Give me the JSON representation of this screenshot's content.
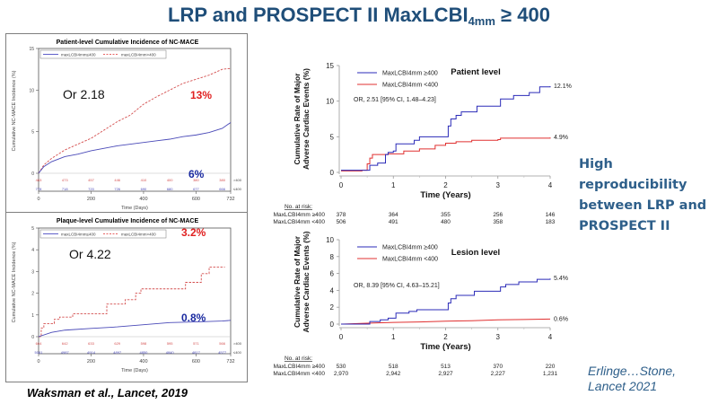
{
  "slide": {
    "title_main": "LRP and PROSPECT II MaxLCBI",
    "title_sub": "4mm",
    "title_tail": " ≥ 400",
    "reproducibility_text": "High reproducibility between LRP and PROSPECT II",
    "lrp_citation": "Waksman et al., Lancet, 2019",
    "prospect_citation_line1": "Erlinge…Stone,",
    "prospect_citation_line2": "Lancet 2021"
  },
  "colors": {
    "title": "#1f4e79",
    "high_group": "#2b2bb8",
    "low_group": "#e03030",
    "annotation_red": "#e02020",
    "annotation_blue": "#1a2aa0"
  },
  "chart_data": [
    {
      "id": "lrp-patient",
      "type": "line",
      "title": "Patient-level Cumulative Incidence of NC-MACE",
      "xlabel": "Time (Days)",
      "ylabel": "Cumulative NC-MACE Incidence (%)",
      "xlim": [
        0,
        732
      ],
      "ylim": [
        0,
        15
      ],
      "xticks": [
        0,
        200,
        400,
        600,
        732
      ],
      "yticks": [
        0,
        5,
        10,
        15
      ],
      "legend": [
        "maxLCBI4mm≤400",
        "maxLCBI4mm>400"
      ],
      "legend_position": "top-left",
      "annotations": {
        "or": "Or 2.18",
        "high_pct": "13%",
        "low_pct": "6%"
      },
      "series": [
        {
          "name": "maxLCBI4mm>400",
          "style": "dashed",
          "x": [
            0,
            20,
            50,
            100,
            150,
            200,
            250,
            300,
            350,
            400,
            450,
            500,
            550,
            600,
            650,
            700,
            732
          ],
          "y": [
            0,
            1.0,
            1.8,
            2.8,
            3.5,
            4.2,
            5.2,
            6.2,
            7.0,
            8.3,
            9.2,
            10.0,
            10.8,
            11.3,
            11.8,
            12.5,
            12.6
          ]
        },
        {
          "name": "maxLCBI4mm≤400",
          "style": "solid",
          "x": [
            0,
            20,
            50,
            100,
            150,
            200,
            250,
            300,
            350,
            400,
            450,
            500,
            550,
            600,
            650,
            700,
            732
          ],
          "y": [
            0,
            0.8,
            1.4,
            2.0,
            2.3,
            2.7,
            3.0,
            3.3,
            3.5,
            3.7,
            3.9,
            4.1,
            4.4,
            4.6,
            4.9,
            5.4,
            6.1
          ]
        }
      ],
      "risk_table": {
        "labels": [
          ">400",
          "≤400"
        ],
        "rows": [
          [
            "483",
            "473",
            "457",
            "446",
            "410",
            "400",
            "380",
            "380"
          ],
          [
            "778",
            "718",
            "720",
            "726",
            "690",
            "680",
            "677",
            "666"
          ]
        ]
      }
    },
    {
      "id": "lrp-plaque",
      "type": "line",
      "title": "Plaque-level Cumulative Incidence of NC-MACE",
      "xlabel": "Time (Days)",
      "ylabel": "Cumulative NC-MACE Incidence (%)",
      "xlim": [
        0,
        732
      ],
      "ylim": [
        0,
        5
      ],
      "xticks": [
        0,
        200,
        400,
        600,
        732
      ],
      "yticks": [
        0,
        1,
        2,
        3,
        4,
        5
      ],
      "legend": [
        "maxLCBI4mm≤400",
        "maxLCBI4mm>400"
      ],
      "legend_position": "top-left",
      "annotations": {
        "or": "Or 4.22",
        "high_pct": "3.2%",
        "low_pct": "0.8%"
      },
      "series": [
        {
          "name": "maxLCBI4mm>400",
          "style": "dashed",
          "step": true,
          "x": [
            0,
            10,
            20,
            60,
            80,
            130,
            250,
            260,
            320,
            330,
            370,
            390,
            540,
            560,
            610,
            620,
            650,
            710
          ],
          "y": [
            0,
            0.4,
            0.6,
            0.8,
            0.9,
            1.05,
            1.05,
            1.5,
            1.5,
            1.7,
            2.0,
            2.2,
            2.2,
            2.5,
            2.5,
            2.9,
            3.2,
            3.2
          ]
        },
        {
          "name": "maxLCBI4mm≤400",
          "style": "solid",
          "x": [
            0,
            50,
            100,
            200,
            300,
            400,
            500,
            600,
            700,
            732
          ],
          "y": [
            0,
            0.2,
            0.3,
            0.38,
            0.45,
            0.55,
            0.65,
            0.68,
            0.72,
            0.75
          ]
        }
      ],
      "risk_table": {
        "labels": [
          ">400",
          "≤400"
        ],
        "rows": [
          [
            "664",
            "642",
            "633",
            "629",
            "598",
            "595",
            "571",
            "566"
          ],
          [
            "5081",
            "4987",
            "4914",
            "4897",
            "4850",
            "4840",
            "4817",
            "4577"
          ]
        ]
      }
    },
    {
      "id": "prospect-patient",
      "type": "line",
      "title": "Patient level",
      "xlabel": "Time (Years)",
      "ylabel": "Cumulative Rate of Major Adverse Cardiac Events (%)",
      "xlim": [
        0,
        4
      ],
      "ylim": [
        0,
        15
      ],
      "xticks": [
        0,
        1,
        2,
        3,
        4
      ],
      "yticks": [
        0,
        5,
        10,
        15
      ],
      "legend": [
        "MaxLCBI4mm ≥400",
        "MaxLCBI4mm <400"
      ],
      "legend_position": "top-left",
      "annotations": {
        "or": "OR, 2.51 [95% CI, 1.48–4.23]",
        "high_end": "12.1%",
        "low_end": "4.9%"
      },
      "series": [
        {
          "name": "MaxLCBI4mm ≥400",
          "step": true,
          "x": [
            0,
            0.5,
            0.55,
            0.7,
            0.85,
            0.9,
            1.0,
            1.05,
            1.3,
            1.4,
            1.5,
            2.0,
            2.05,
            2.1,
            2.2,
            2.3,
            2.6,
            3.0,
            3.05,
            3.3,
            3.6,
            3.8,
            4.0
          ],
          "y": [
            0.3,
            0.3,
            1.0,
            1.3,
            2.5,
            2.8,
            3.0,
            4.0,
            4.0,
            4.5,
            5.0,
            5.0,
            6.5,
            7.5,
            8.0,
            8.5,
            9.3,
            9.3,
            10.3,
            10.8,
            11.2,
            12.0,
            12.1
          ]
        },
        {
          "name": "MaxLCBI4mm <400",
          "step": true,
          "x": [
            0,
            0.4,
            0.5,
            0.55,
            0.6,
            0.9,
            1.2,
            1.5,
            1.8,
            2.0,
            2.2,
            2.5,
            3.0,
            3.05,
            4.0
          ],
          "y": [
            0.2,
            0.3,
            1.2,
            2.0,
            2.5,
            2.6,
            3.0,
            3.3,
            3.8,
            4.1,
            4.3,
            4.5,
            4.6,
            4.8,
            4.9
          ]
        }
      ],
      "risk_table": {
        "heading": "No. at risk:",
        "labels": [
          "MaxLCBI4mm ≥400",
          "MaxLCBI4mm <400"
        ],
        "rows": [
          [
            "378",
            "364",
            "355",
            "256",
            "146"
          ],
          [
            "506",
            "491",
            "480",
            "358",
            "183"
          ]
        ]
      }
    },
    {
      "id": "prospect-lesion",
      "type": "line",
      "title": "Lesion level",
      "xlabel": "Time (Years)",
      "ylabel": "Cumulative Rate of Major Adverse Cardiac Events (%)",
      "xlim": [
        0,
        4
      ],
      "ylim": [
        0,
        10
      ],
      "xticks": [
        0,
        1,
        2,
        3,
        4
      ],
      "yticks": [
        0,
        2,
        4,
        6,
        8,
        10
      ],
      "legend": [
        "MaxLCBI4mm ≥400",
        "MaxLCBI4mm <400"
      ],
      "legend_position": "top-left",
      "annotations": {
        "or": "OR, 8.39 [95% CI, 4.63–15.21]",
        "high_end": "5.4%",
        "low_end": "0.6%"
      },
      "series": [
        {
          "name": "MaxLCBI4mm ≥400",
          "step": true,
          "x": [
            0,
            0.5,
            0.55,
            0.75,
            0.9,
            1.05,
            1.3,
            1.45,
            2.0,
            2.05,
            2.1,
            2.2,
            2.55,
            3.0,
            3.05,
            3.15,
            3.4,
            3.75,
            4.0
          ],
          "y": [
            0,
            0,
            0.3,
            0.5,
            0.7,
            1.3,
            1.5,
            1.7,
            1.7,
            2.5,
            3.0,
            3.4,
            3.9,
            3.9,
            4.4,
            4.7,
            5.0,
            5.3,
            5.4
          ]
        },
        {
          "name": "MaxLCBI4mm <400",
          "step": false,
          "x": [
            0,
            0.5,
            1.0,
            1.5,
            2.0,
            2.5,
            3.0,
            3.5,
            4.0
          ],
          "y": [
            0,
            0.1,
            0.2,
            0.25,
            0.35,
            0.4,
            0.5,
            0.55,
            0.6
          ]
        }
      ],
      "risk_table": {
        "heading": "No. at risk:",
        "labels": [
          "MaxLCBI4mm ≥400",
          "MaxLCBI4mm <400"
        ],
        "rows": [
          [
            "530",
            "518",
            "513",
            "370",
            "220"
          ],
          [
            "2,970",
            "2,942",
            "2,927",
            "2,227",
            "1,231"
          ]
        ]
      }
    }
  ]
}
